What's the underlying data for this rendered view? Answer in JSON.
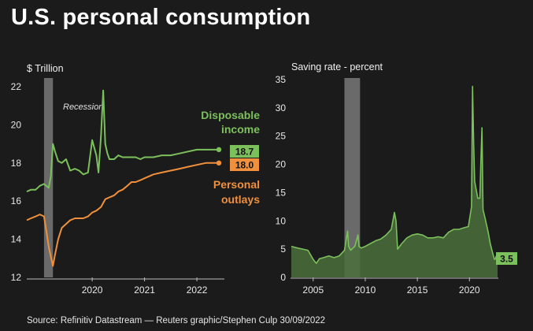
{
  "title": "U.S. personal consumption",
  "footer": "Source: Refinitiv Datastream — Reuters graphic/Stephen Culp 30/09/2022",
  "colors": {
    "green": "#7cc05c",
    "orange": "#f0903c",
    "area": "#4a6e3a",
    "recession": "#6a6a6a"
  },
  "chart_data": [
    {
      "type": "line",
      "unit_label": "$ Trillion",
      "recession_label": "Recession",
      "ylim": [
        12,
        22
      ],
      "y_ticks": [
        "12",
        "14",
        "16",
        "18",
        "20",
        "22"
      ],
      "x_ticks": [
        {
          "t": 2020.0,
          "label": "2020"
        },
        {
          "t": 2021.0,
          "label": "2021"
        },
        {
          "t": 2022.0,
          "label": "2022"
        }
      ],
      "xlim": [
        2018.75,
        2022.42
      ],
      "recession": [
        2019.08,
        2019.25
      ],
      "series": [
        {
          "name": "Disposable income",
          "label_line1": "Disposable",
          "label_line2": "income",
          "end_value": "18.7",
          "x": [
            2018.75,
            2018.83,
            2018.92,
            2019.0,
            2019.08,
            2019.17,
            2019.21,
            2019.25,
            2019.29,
            2019.35,
            2019.42,
            2019.5,
            2019.58,
            2019.67,
            2019.75,
            2019.83,
            2019.92,
            2020.0,
            2020.08,
            2020.12,
            2020.17,
            2020.21,
            2020.25,
            2020.29,
            2020.33,
            2020.42,
            2020.5,
            2020.58,
            2020.67,
            2020.75,
            2020.83,
            2020.92,
            2021.0,
            2021.17,
            2021.33,
            2021.5,
            2021.67,
            2021.83,
            2022.0,
            2022.17,
            2022.33,
            2022.42
          ],
          "values": [
            16.5,
            16.6,
            16.6,
            16.8,
            16.9,
            16.7,
            17.3,
            19.0,
            18.6,
            18.1,
            18.0,
            18.2,
            17.6,
            17.7,
            17.6,
            17.4,
            17.5,
            19.2,
            18.4,
            17.5,
            19.5,
            21.8,
            19.0,
            18.5,
            18.2,
            18.2,
            18.4,
            18.3,
            18.3,
            18.3,
            18.3,
            18.2,
            18.3,
            18.3,
            18.4,
            18.4,
            18.5,
            18.6,
            18.7,
            18.7,
            18.7,
            18.7
          ]
        },
        {
          "name": "Personal outlays",
          "label_line1": "Personal",
          "label_line2": "outlays",
          "end_value": "18.0",
          "x": [
            2018.75,
            2018.83,
            2018.92,
            2019.0,
            2019.08,
            2019.12,
            2019.17,
            2019.25,
            2019.29,
            2019.35,
            2019.42,
            2019.5,
            2019.58,
            2019.67,
            2019.75,
            2019.83,
            2019.92,
            2020.0,
            2020.08,
            2020.17,
            2020.25,
            2020.33,
            2020.42,
            2020.5,
            2020.58,
            2020.67,
            2020.75,
            2020.83,
            2020.92,
            2021.0,
            2021.17,
            2021.33,
            2021.5,
            2021.67,
            2021.83,
            2022.0,
            2022.17,
            2022.33,
            2022.42
          ],
          "values": [
            15.0,
            15.1,
            15.2,
            15.3,
            15.2,
            14.5,
            13.6,
            12.6,
            13.2,
            14.0,
            14.6,
            14.8,
            15.0,
            15.1,
            15.1,
            15.1,
            15.2,
            15.4,
            15.5,
            15.7,
            16.1,
            16.2,
            16.3,
            16.5,
            16.6,
            16.8,
            17.0,
            17.0,
            17.1,
            17.2,
            17.4,
            17.5,
            17.6,
            17.7,
            17.8,
            17.9,
            18.0,
            18.0,
            18.0
          ]
        }
      ]
    },
    {
      "type": "area",
      "unit_label": "Saving rate - percent",
      "ylim": [
        0,
        35
      ],
      "y_ticks": [
        "0",
        "5",
        "10",
        "15",
        "20",
        "25",
        "30",
        "35"
      ],
      "x_ticks": [
        {
          "t": 2005,
          "label": "2005"
        },
        {
          "t": 2010,
          "label": "2010"
        },
        {
          "t": 2015,
          "label": "2015"
        },
        {
          "t": 2020,
          "label": "2020"
        }
      ],
      "xlim": [
        2002.9,
        2022.7
      ],
      "recession": [
        2008.0,
        2009.5
      ],
      "series": [
        {
          "name": "Saving rate",
          "end_value": "3.5",
          "x": [
            2002.9,
            2003.5,
            2004.0,
            2004.5,
            2005.0,
            2005.3,
            2005.6,
            2006.0,
            2006.5,
            2007.0,
            2007.5,
            2008.0,
            2008.3,
            2008.4,
            2008.6,
            2009.0,
            2009.3,
            2009.4,
            2009.6,
            2010.0,
            2010.5,
            2011.0,
            2011.5,
            2012.0,
            2012.5,
            2012.8,
            2012.95,
            2013.1,
            2013.5,
            2014.0,
            2014.5,
            2015.0,
            2015.5,
            2016.0,
            2016.5,
            2017.0,
            2017.5,
            2018.0,
            2018.5,
            2019.0,
            2019.5,
            2019.9,
            2020.2,
            2020.3,
            2020.4,
            2020.5,
            2020.8,
            2021.0,
            2021.1,
            2021.2,
            2021.3,
            2021.5,
            2021.8,
            2022.0,
            2022.2,
            2022.4,
            2022.6,
            2022.7
          ],
          "values": [
            5.5,
            5.2,
            5.0,
            4.8,
            3.2,
            2.5,
            3.3,
            3.5,
            3.8,
            3.5,
            3.8,
            4.8,
            8.2,
            5.5,
            4.8,
            5.5,
            7.5,
            5.5,
            5.2,
            5.5,
            6.0,
            6.5,
            6.8,
            7.5,
            8.5,
            11.5,
            10.0,
            5.0,
            6.0,
            7.0,
            7.5,
            7.7,
            7.5,
            7.0,
            7.0,
            7.2,
            7.0,
            8.0,
            8.5,
            8.5,
            8.8,
            9.0,
            12.5,
            33.8,
            24.0,
            17.0,
            14.0,
            14.0,
            20.5,
            26.5,
            12.0,
            10.5,
            8.0,
            6.0,
            4.5,
            3.2,
            3.4,
            3.5
          ]
        }
      ]
    }
  ]
}
